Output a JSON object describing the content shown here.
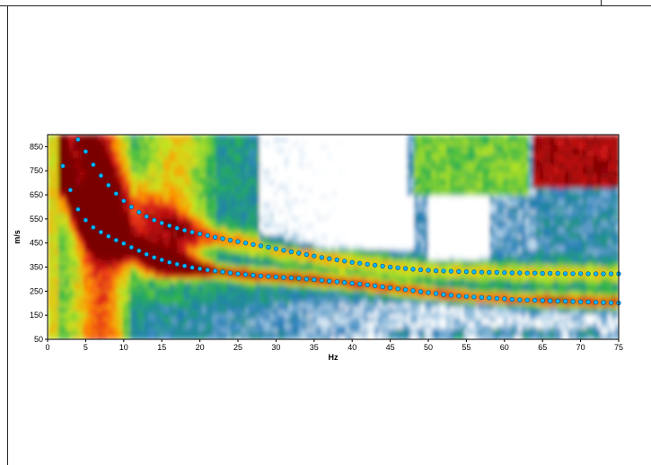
{
  "chart_data": {
    "type": "heatmap",
    "title": "",
    "xlabel": "Hz",
    "ylabel": "m/s",
    "xlim": [
      0,
      75
    ],
    "ylim": [
      50,
      900
    ],
    "x_ticks": [
      "0",
      "5",
      "10",
      "15",
      "20",
      "25",
      "30",
      "35",
      "40",
      "45",
      "50",
      "55",
      "60",
      "65",
      "70",
      "75"
    ],
    "y_ticks": [
      "50",
      "150",
      "250",
      "350",
      "450",
      "550",
      "650",
      "750",
      "850"
    ],
    "grid": false,
    "colormap": [
      "#ffffff",
      "#1f7ab8",
      "#27b34a",
      "#c8e820",
      "#ff9900",
      "#e31a1c",
      "#7a0000"
    ],
    "series": [
      {
        "style": "dots",
        "color": "#00b8ff",
        "x": [
          4,
          5,
          6,
          7,
          8,
          9,
          10,
          11,
          12,
          13,
          14,
          15,
          16,
          17,
          18,
          19,
          20,
          21,
          22,
          23,
          24,
          25,
          26,
          27,
          28,
          29,
          30,
          31,
          32,
          33,
          34,
          35,
          36,
          37,
          38,
          39,
          40,
          41,
          42,
          43,
          44,
          45,
          46,
          47,
          48,
          49,
          50,
          51,
          52,
          53,
          54,
          55,
          56,
          57,
          58,
          59,
          60,
          61,
          62,
          63,
          64,
          65,
          66,
          67,
          68,
          69,
          70,
          71,
          72,
          73,
          74,
          75
        ],
        "y": [
          880,
          830,
          775,
          730,
          690,
          655,
          625,
          600,
          578,
          560,
          545,
          533,
          522,
          512,
          503,
          495,
          488,
          481,
          474,
          468,
          462,
          456,
          450,
          444,
          438,
          432,
          426,
          420,
          414,
          408,
          402,
          396,
          390,
          385,
          380,
          375,
          370,
          366,
          362,
          358,
          354,
          350,
          347,
          344,
          341,
          339,
          337,
          335,
          334,
          333,
          332,
          331,
          330,
          329,
          328,
          328,
          327,
          326,
          326,
          325,
          325,
          324,
          324,
          324,
          323,
          323,
          323,
          322,
          322,
          322,
          322,
          322
        ]
      },
      {
        "style": "dots",
        "color": "#00b8ff",
        "x": [
          2,
          3,
          4,
          5,
          6,
          7,
          8,
          9,
          10,
          11,
          12,
          13,
          14,
          15,
          16,
          17,
          18,
          19,
          20,
          21,
          22,
          23,
          24,
          25,
          26,
          27,
          28,
          29,
          30,
          31,
          32,
          33,
          34,
          35,
          36,
          37,
          38,
          39,
          40,
          41,
          42,
          43,
          44,
          45,
          46,
          47,
          48,
          49,
          50,
          51,
          52,
          53,
          54,
          55,
          56,
          57,
          58,
          59,
          60,
          61,
          62,
          63,
          64,
          65,
          66,
          67,
          68,
          69,
          70,
          71,
          72,
          73,
          74,
          75
        ],
        "y": [
          770,
          670,
          590,
          545,
          515,
          495,
          478,
          462,
          448,
          432,
          418,
          403,
          390,
          380,
          370,
          362,
          355,
          348,
          343,
          338,
          334,
          330,
          326,
          322,
          319,
          316,
          313,
          311,
          309,
          307,
          305,
          303,
          300,
          298,
          295,
          292,
          289,
          286,
          283,
          280,
          276,
          272,
          268,
          264,
          260,
          256,
          252,
          248,
          244,
          240,
          236,
          233,
          230,
          228,
          226,
          224,
          222,
          220,
          218,
          216,
          214,
          213,
          212,
          211,
          210,
          209,
          208,
          207,
          206,
          205,
          204,
          203,
          202,
          201
        ]
      }
    ]
  }
}
